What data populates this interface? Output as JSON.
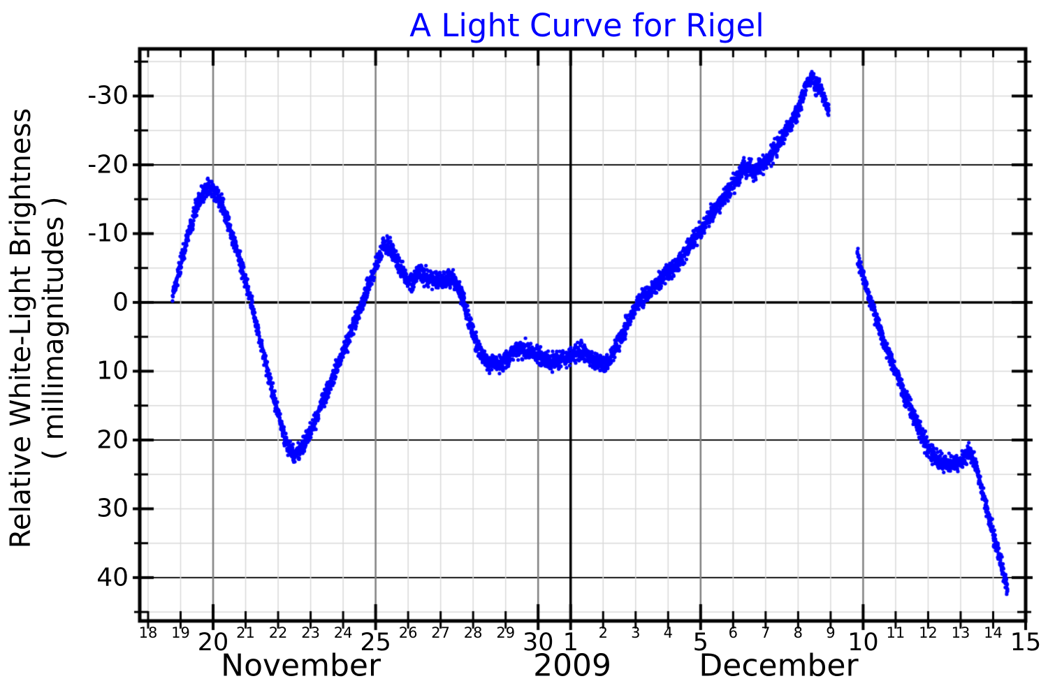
{
  "chart_data": {
    "type": "scatter",
    "title": "A Light Curve for Rigel",
    "title_color": "#0000ff",
    "ylabel_line1": "Relative White-Light Brightness",
    "ylabel_line2": "( millimagnitudes )",
    "series_color": "#0000ff",
    "point_radius": 2.6,
    "noise_sigma_mmag": 0.62,
    "y_axis": {
      "inverted": true,
      "lim": [
        -36.85,
        46.3
      ],
      "tick_step": 5,
      "label_step": 10,
      "tick_labels": [
        {
          "value": -30,
          "text": "-30"
        },
        {
          "value": -20,
          "text": "-20"
        },
        {
          "value": -10,
          "text": "-10"
        },
        {
          "value": 0,
          "text": "0"
        },
        {
          "value": 10,
          "text": "10"
        },
        {
          "value": 20,
          "text": "20"
        },
        {
          "value": 30,
          "text": "30"
        },
        {
          "value": 40,
          "text": "40"
        }
      ],
      "dark_grid_values": [
        -20,
        20,
        40
      ],
      "zero_line_value": 0,
      "minor_grid_color": "#d9d9d9",
      "dark_grid_color": "#111111",
      "zero_line_color": "#000000"
    },
    "x_axis": {
      "lim_days": [
        17.742,
        45.0
      ],
      "day_start": 18,
      "day_end": 45,
      "major_days": [
        20,
        25,
        30,
        31,
        35,
        40,
        45
      ],
      "month_boundary_day": 31,
      "major_grid_color": "#808080",
      "month_boundary_color": "#000000",
      "minor_grid_color": "#d9d9d9",
      "day_labels": [
        {
          "day": 18,
          "text": "18",
          "major": false
        },
        {
          "day": 19,
          "text": "19",
          "major": false
        },
        {
          "day": 20,
          "text": "20",
          "major": true
        },
        {
          "day": 21,
          "text": "21",
          "major": false
        },
        {
          "day": 22,
          "text": "22",
          "major": false
        },
        {
          "day": 23,
          "text": "23",
          "major": false
        },
        {
          "day": 24,
          "text": "24",
          "major": false
        },
        {
          "day": 25,
          "text": "25",
          "major": true
        },
        {
          "day": 26,
          "text": "26",
          "major": false
        },
        {
          "day": 27,
          "text": "27",
          "major": false
        },
        {
          "day": 28,
          "text": "28",
          "major": false
        },
        {
          "day": 29,
          "text": "29",
          "major": false
        },
        {
          "day": 30,
          "text": "30",
          "major": true
        },
        {
          "day": 31,
          "text": "1",
          "major": true
        },
        {
          "day": 32,
          "text": "2",
          "major": false
        },
        {
          "day": 33,
          "text": "3",
          "major": false
        },
        {
          "day": 34,
          "text": "4",
          "major": false
        },
        {
          "day": 35,
          "text": "5",
          "major": true
        },
        {
          "day": 36,
          "text": "6",
          "major": false
        },
        {
          "day": 37,
          "text": "7",
          "major": false
        },
        {
          "day": 38,
          "text": "8",
          "major": false
        },
        {
          "day": 39,
          "text": "9",
          "major": false
        },
        {
          "day": 40,
          "text": "10",
          "major": true
        },
        {
          "day": 41,
          "text": "11",
          "major": false
        },
        {
          "day": 42,
          "text": "12",
          "major": false
        },
        {
          "day": 43,
          "text": "13",
          "major": false
        },
        {
          "day": 44,
          "text": "14",
          "major": false
        },
        {
          "day": 45,
          "text": "15",
          "major": true
        }
      ],
      "month_labels": [
        {
          "text": "November",
          "day": 22.7
        },
        {
          "text": "2009",
          "day": 31.05
        },
        {
          "text": "December",
          "day": 37.4
        }
      ]
    },
    "series": [
      {
        "name": "segment-nov18-dec9",
        "anchors": [
          [
            18.75,
            -0.8
          ],
          [
            18.85,
            -2.5
          ],
          [
            19.0,
            -5.5
          ],
          [
            19.15,
            -8.5
          ],
          [
            19.3,
            -11.0
          ],
          [
            19.5,
            -14.0
          ],
          [
            19.7,
            -16.0
          ],
          [
            19.85,
            -16.8
          ],
          [
            20.0,
            -16.6
          ],
          [
            20.1,
            -15.6
          ],
          [
            20.25,
            -14.5
          ],
          [
            20.4,
            -12.5
          ],
          [
            20.6,
            -9.5
          ],
          [
            20.8,
            -6.5
          ],
          [
            21.0,
            -3.0
          ],
          [
            21.2,
            0.5
          ],
          [
            21.4,
            4.5
          ],
          [
            21.6,
            8.5
          ],
          [
            21.8,
            12.5
          ],
          [
            22.0,
            16.0
          ],
          [
            22.2,
            19.5
          ],
          [
            22.35,
            21.3
          ],
          [
            22.5,
            22.2
          ],
          [
            22.65,
            21.5
          ],
          [
            22.8,
            20.5
          ],
          [
            23.0,
            18.5
          ],
          [
            23.2,
            16.5
          ],
          [
            23.5,
            13.0
          ],
          [
            23.8,
            9.5
          ],
          [
            24.1,
            6.0
          ],
          [
            24.4,
            2.5
          ],
          [
            24.7,
            -1.5
          ],
          [
            24.9,
            -4.0
          ],
          [
            25.1,
            -6.5
          ],
          [
            25.25,
            -8.2
          ],
          [
            25.4,
            -8.3
          ],
          [
            25.55,
            -7.0
          ],
          [
            25.7,
            -5.5
          ],
          [
            25.85,
            -4.2
          ],
          [
            26.0,
            -3.0
          ],
          [
            26.15,
            -3.0
          ],
          [
            26.3,
            -4.2
          ],
          [
            26.45,
            -4.3
          ],
          [
            26.6,
            -3.6
          ],
          [
            26.75,
            -3.2
          ],
          [
            26.9,
            -3.0
          ],
          [
            27.05,
            -2.8
          ],
          [
            27.2,
            -3.2
          ],
          [
            27.35,
            -3.8
          ],
          [
            27.5,
            -2.5
          ],
          [
            27.65,
            -1.0
          ],
          [
            27.8,
            1.5
          ],
          [
            27.95,
            4.0
          ],
          [
            28.1,
            6.0
          ],
          [
            28.3,
            7.8
          ],
          [
            28.5,
            8.8
          ],
          [
            28.7,
            9.0
          ],
          [
            28.9,
            8.8
          ],
          [
            29.1,
            8.0
          ],
          [
            29.3,
            7.0
          ],
          [
            29.5,
            6.8
          ],
          [
            29.7,
            7.0
          ],
          [
            29.9,
            7.3
          ],
          [
            30.1,
            8.0
          ],
          [
            30.3,
            8.5
          ],
          [
            30.5,
            8.7
          ],
          [
            30.7,
            8.3
          ],
          [
            30.9,
            8.0
          ],
          [
            31.1,
            7.5
          ],
          [
            31.3,
            7.0
          ],
          [
            31.5,
            7.5
          ],
          [
            31.7,
            8.3
          ],
          [
            31.9,
            8.8
          ],
          [
            32.05,
            9.0
          ],
          [
            32.2,
            8.3
          ],
          [
            32.35,
            7.0
          ],
          [
            32.5,
            5.5
          ],
          [
            32.7,
            3.5
          ],
          [
            32.9,
            1.5
          ],
          [
            33.1,
            0.0
          ],
          [
            33.3,
            -1.0
          ],
          [
            33.5,
            -2.0
          ],
          [
            33.8,
            -3.5
          ],
          [
            34.1,
            -4.8
          ],
          [
            34.4,
            -6.5
          ],
          [
            34.7,
            -8.5
          ],
          [
            35.0,
            -10.5
          ],
          [
            35.3,
            -12.5
          ],
          [
            35.6,
            -14.5
          ],
          [
            35.9,
            -16.5
          ],
          [
            36.1,
            -18.0
          ],
          [
            36.3,
            -19.5
          ],
          [
            36.5,
            -19.8
          ],
          [
            36.6,
            -18.8
          ],
          [
            36.75,
            -19.5
          ],
          [
            36.9,
            -20.3
          ],
          [
            37.05,
            -20.5
          ],
          [
            37.2,
            -21.5
          ],
          [
            37.4,
            -23.0
          ],
          [
            37.6,
            -24.8
          ],
          [
            37.8,
            -26.3
          ],
          [
            38.0,
            -28.0
          ],
          [
            38.15,
            -30.0
          ],
          [
            38.3,
            -32.0
          ],
          [
            38.45,
            -32.7
          ],
          [
            38.55,
            -31.0
          ],
          [
            38.65,
            -31.5
          ],
          [
            38.8,
            -29.8
          ],
          [
            38.95,
            -27.5
          ]
        ]
      },
      {
        "name": "segment-dec10-dec15",
        "anchors": [
          [
            39.82,
            -7.0
          ],
          [
            39.95,
            -4.5
          ],
          [
            40.1,
            -2.0
          ],
          [
            40.3,
            1.0
          ],
          [
            40.5,
            3.8
          ],
          [
            40.7,
            6.5
          ],
          [
            41.0,
            10.0
          ],
          [
            41.3,
            13.5
          ],
          [
            41.6,
            17.0
          ],
          [
            41.9,
            20.3
          ],
          [
            42.1,
            22.0
          ],
          [
            42.3,
            23.0
          ],
          [
            42.5,
            23.3
          ],
          [
            42.7,
            23.5
          ],
          [
            42.9,
            23.2
          ],
          [
            43.05,
            22.8
          ],
          [
            43.2,
            21.8
          ],
          [
            43.35,
            22.3
          ],
          [
            43.45,
            23.5
          ],
          [
            43.6,
            26.5
          ],
          [
            43.8,
            30.0
          ],
          [
            44.0,
            33.5
          ],
          [
            44.2,
            37.0
          ],
          [
            44.35,
            40.0
          ],
          [
            44.45,
            42.0
          ]
        ]
      }
    ]
  }
}
